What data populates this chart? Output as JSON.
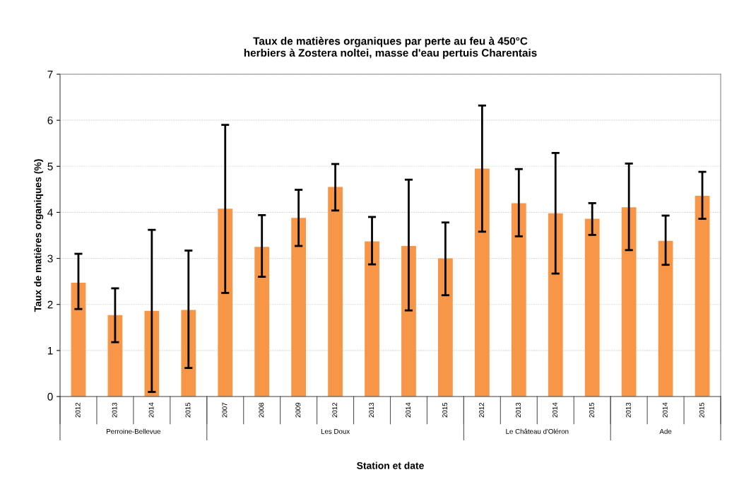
{
  "chart_data": {
    "type": "bar",
    "title": "Taux de matières organiques par perte au feu à 450°C\nherbiers à Zostera noltei, masse d'eau pertuis Charentais",
    "xlabel": "Station et date",
    "ylabel": "Taux de matières organiques (%)",
    "categories": [
      "2012",
      "2013",
      "2014",
      "2015",
      "2007",
      "2008",
      "2009",
      "2012",
      "2013",
      "2014",
      "2015",
      "2012",
      "2013",
      "2014",
      "2015",
      "2013",
      "2014",
      "2015"
    ],
    "values": [
      2.47,
      1.77,
      1.86,
      1.88,
      4.08,
      3.25,
      3.88,
      4.55,
      3.37,
      3.27,
      3.0,
      4.95,
      4.2,
      3.98,
      3.86,
      4.11,
      3.38,
      4.36
    ],
    "errors": [
      [
        1.9,
        3.1
      ],
      [
        1.18,
        2.35
      ],
      [
        0.1,
        3.62
      ],
      [
        0.62,
        3.17
      ],
      [
        2.25,
        5.9
      ],
      [
        2.6,
        3.94
      ],
      [
        3.27,
        4.49
      ],
      [
        4.04,
        5.05
      ],
      [
        2.87,
        3.9
      ],
      [
        1.87,
        4.71
      ],
      [
        2.2,
        3.78
      ],
      [
        3.58,
        6.32
      ],
      [
        3.48,
        4.94
      ],
      [
        2.67,
        5.29
      ],
      [
        3.51,
        4.2
      ],
      [
        3.18,
        5.06
      ],
      [
        2.86,
        3.93
      ],
      [
        3.86,
        4.88
      ]
    ],
    "color": "#f79646",
    "annotations": [
      "Perroine-Bellevue",
      "Les Doux",
      "Le Château d'Oléron",
      "Ade"
    ],
    "ylim": [
      0,
      7
    ],
    "yticks": [
      0,
      1,
      2,
      3,
      4,
      5,
      6,
      7
    ],
    "grid": "y",
    "legend": false
  }
}
